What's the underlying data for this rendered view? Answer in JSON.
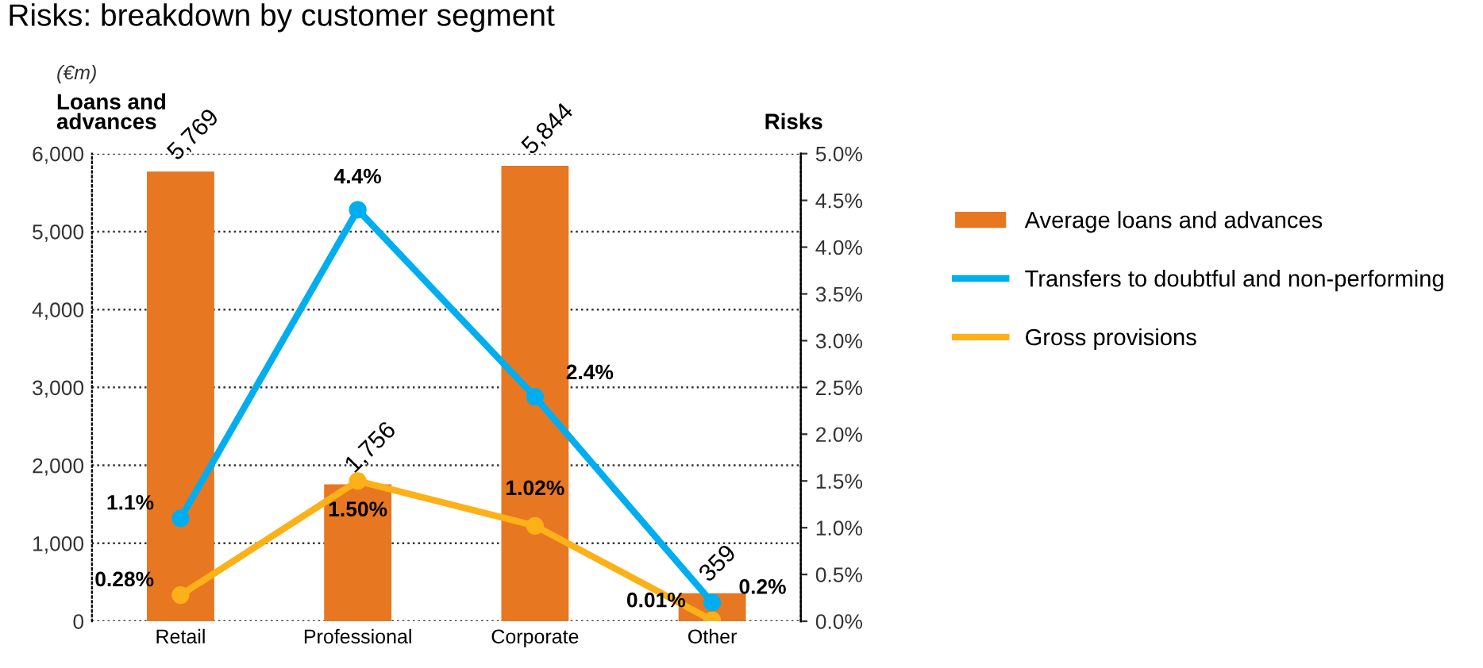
{
  "chart_data": {
    "type": "bar",
    "title": "Risks: breakdown by customer segment",
    "ylabel": "Loans and advances",
    "y2label": "Risks",
    "annotations": [
      "(€m)"
    ],
    "categories": [
      "Retail",
      "Professional",
      "Corporate",
      "Other"
    ],
    "series": [
      {
        "name": "Average loans and advances",
        "color": "#e87722",
        "values": [
          5769,
          1756,
          5844,
          359
        ],
        "value_labels": [
          "5,769",
          "1,756",
          "5,844",
          "359"
        ]
      },
      {
        "name": "Transfers to doubtful and non-performing",
        "type": "line",
        "axis": "y2",
        "color": "#00aeef",
        "values": [
          1.1,
          4.4,
          2.4,
          0.2
        ],
        "value_labels": [
          "1.1%",
          "4.4%",
          "2.4%",
          "0.2%"
        ]
      },
      {
        "name": "Gross provisions",
        "type": "line",
        "axis": "y2",
        "color": "#fbb117",
        "values": [
          0.28,
          1.5,
          1.02,
          0.01
        ],
        "value_labels": [
          "0.28%",
          "1.50%",
          "1.02%",
          "0.01%"
        ]
      }
    ],
    "ylim": [
      0,
      6000
    ],
    "yticks": [
      {
        "value": 0,
        "label": "0"
      },
      {
        "value": 1000,
        "label": "1,000"
      },
      {
        "value": 2000,
        "label": "2,000"
      },
      {
        "value": 3000,
        "label": "3,000"
      },
      {
        "value": 4000,
        "label": "4,000"
      },
      {
        "value": 5000,
        "label": "5,000"
      },
      {
        "value": 6000,
        "label": "6,000"
      }
    ],
    "y2lim": [
      0,
      5
    ],
    "y2ticks": [
      {
        "value": 0,
        "label": "0.0%"
      },
      {
        "value": 0.5,
        "label": "0.5%"
      },
      {
        "value": 1,
        "label": "1.0%"
      },
      {
        "value": 1.5,
        "label": "1.5%"
      },
      {
        "value": 2,
        "label": "2.0%"
      },
      {
        "value": 2.5,
        "label": "2.5%"
      },
      {
        "value": 3,
        "label": "3.0%"
      },
      {
        "value": 3.5,
        "label": "3.5%"
      },
      {
        "value": 4,
        "label": "4.0%"
      },
      {
        "value": 4.5,
        "label": "4.5%"
      },
      {
        "value": 5,
        "label": "5.0%"
      }
    ],
    "grid": "y",
    "legend": "right",
    "marker": "circle",
    "line_style": "solid"
  }
}
